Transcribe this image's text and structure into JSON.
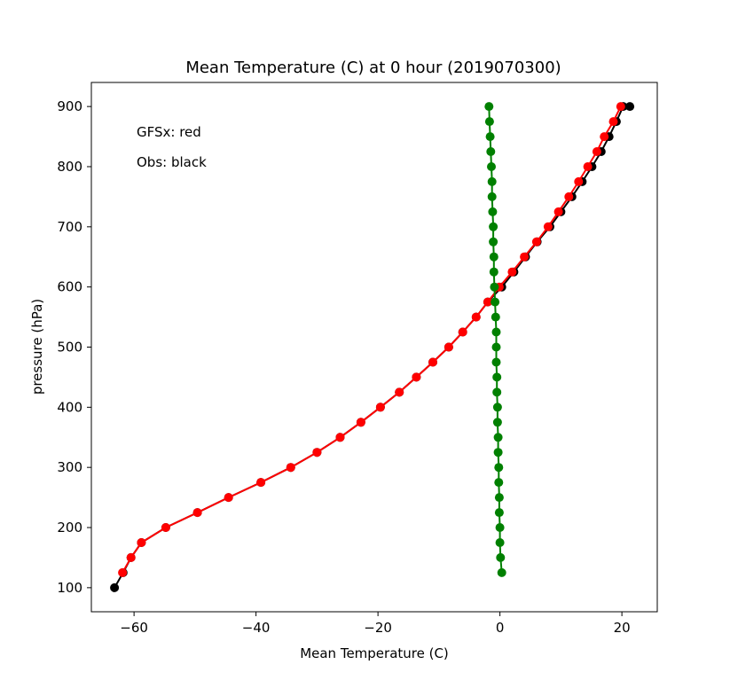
{
  "chart_data": {
    "type": "line",
    "title": "Mean Temperature (C) at 0 hour (2019070300)",
    "xlabel": "Mean Temperature (C)",
    "ylabel": "pressure (hPa)",
    "xlim": [
      -67,
      25.8
    ],
    "ylim": [
      60,
      940
    ],
    "xticks": [
      -60,
      -40,
      -20,
      0,
      20
    ],
    "yticks": [
      100,
      200,
      300,
      400,
      500,
      600,
      700,
      800,
      900
    ],
    "xtick_labels": [
      "−60",
      "−40",
      "−20",
      "0",
      "20"
    ],
    "ytick_labels": [
      "100",
      "200",
      "300",
      "400",
      "500",
      "600",
      "700",
      "800",
      "900"
    ],
    "grid": false,
    "annotations": [
      "GFSx: red",
      "Obs: black"
    ],
    "series": [
      {
        "color": "#000000",
        "x": [
          -63.2,
          -61.8,
          -60.5,
          -58.8,
          -54.8,
          -49.6,
          -44.5,
          -39.2,
          -34.3,
          -30.0,
          -26.2,
          -22.8,
          -19.6,
          -16.5,
          -13.7,
          -11.0,
          -8.4,
          -6.1,
          -3.9,
          -2.0,
          0.3,
          2.3,
          4.2,
          6.1,
          8.2,
          10.0,
          11.8,
          13.5,
          15.1,
          16.6,
          17.9,
          19.1,
          20.2,
          21.3
        ],
        "y": [
          100,
          125,
          150,
          175,
          200,
          225,
          250,
          275,
          300,
          325,
          350,
          375,
          400,
          425,
          450,
          475,
          500,
          525,
          550,
          575,
          600,
          625,
          650,
          675,
          700,
          725,
          750,
          775,
          800,
          825,
          850,
          875,
          900,
          900
        ]
      },
      {
        "color": "#ff0000",
        "x": [
          -61.9,
          -60.5,
          -58.8,
          -54.8,
          -49.6,
          -44.5,
          -39.2,
          -34.3,
          -30.0,
          -26.2,
          -22.8,
          -19.6,
          -16.5,
          -13.7,
          -11.0,
          -8.4,
          -6.1,
          -3.9,
          -2.0,
          -0.1,
          2.0,
          4.0,
          6.0,
          7.9,
          9.6,
          11.3,
          12.9,
          14.4,
          15.9,
          17.1,
          18.6,
          19.8
        ],
        "y": [
          125,
          150,
          175,
          200,
          225,
          250,
          275,
          300,
          325,
          350,
          375,
          400,
          425,
          450,
          475,
          500,
          525,
          550,
          575,
          600,
          625,
          650,
          675,
          700,
          725,
          750,
          775,
          800,
          825,
          850,
          875,
          900
        ]
      },
      {
        "color": "#008000",
        "x": [
          0.3,
          0.1,
          0.0,
          0.0,
          -0.1,
          -0.1,
          -0.2,
          -0.2,
          -0.3,
          -0.3,
          -0.4,
          -0.4,
          -0.5,
          -0.5,
          -0.6,
          -0.6,
          -0.6,
          -0.7,
          -0.8,
          -0.9,
          -1.0,
          -1.0,
          -1.1,
          -1.1,
          -1.2,
          -1.3,
          -1.3,
          -1.4,
          -1.5,
          -1.6,
          -1.7,
          -1.8
        ],
        "y": [
          125,
          150,
          175,
          200,
          225,
          250,
          275,
          300,
          325,
          350,
          375,
          400,
          425,
          450,
          475,
          500,
          525,
          550,
          575,
          600,
          625,
          650,
          675,
          700,
          725,
          750,
          775,
          800,
          825,
          850,
          875,
          900
        ]
      }
    ]
  }
}
